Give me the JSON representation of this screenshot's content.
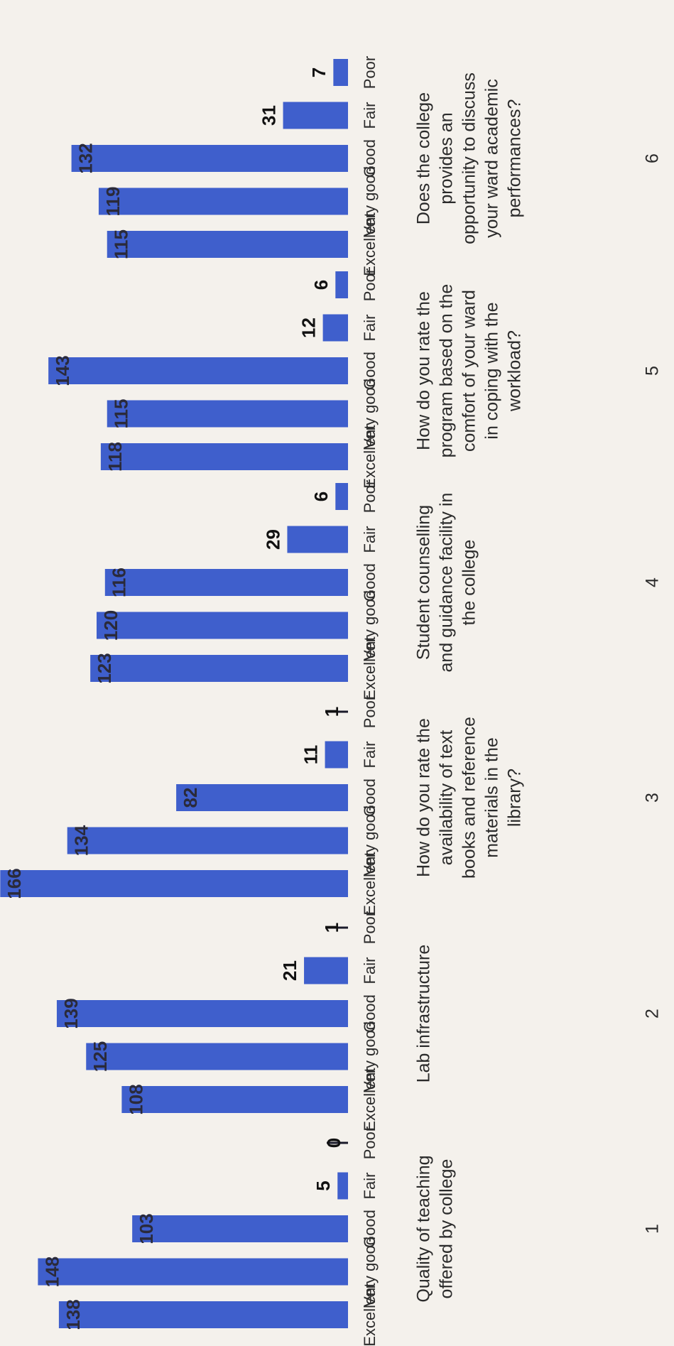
{
  "chart_data": {
    "type": "bar",
    "orientation": "rotated-90",
    "grid": false,
    "legend": "none",
    "bar_color": "#3f5fcc",
    "ylim": [
      0,
      170
    ],
    "groups": [
      {
        "number": "1",
        "question": [
          "Quality of teaching",
          "offered by college"
        ],
        "categories": [
          "Excellent",
          "Very good",
          "Good",
          "Fair",
          "Poor"
        ],
        "values": [
          138,
          148,
          103,
          5,
          0
        ]
      },
      {
        "number": "2",
        "question": [
          "Lab infrastructure"
        ],
        "categories": [
          "Excellent",
          "Very good",
          "Good",
          "Fair",
          "Poor"
        ],
        "values": [
          108,
          125,
          139,
          21,
          1
        ]
      },
      {
        "number": "3",
        "question": [
          "How do you rate the",
          "availability of text",
          "books and reference",
          "materials in the",
          "library?"
        ],
        "categories": [
          "Excellent",
          "Very good",
          "Good",
          "Fair",
          "Poor"
        ],
        "values": [
          166,
          134,
          82,
          11,
          1
        ]
      },
      {
        "number": "4",
        "question": [
          "Student counselling",
          "and guidance facility in",
          "the college"
        ],
        "categories": [
          "Excellent",
          "Very good",
          "Good",
          "Fair",
          "Poor"
        ],
        "values": [
          123,
          120,
          116,
          29,
          6
        ]
      },
      {
        "number": "5",
        "question": [
          "How do you rate the",
          "program based on the",
          "comfort of your ward",
          "in coping with the",
          "workload?"
        ],
        "categories": [
          "Excellent",
          "Very good",
          "Good",
          "Fair",
          "Poor"
        ],
        "values": [
          118,
          115,
          143,
          12,
          6
        ]
      },
      {
        "number": "6",
        "question": [
          "Does the college",
          "provides an",
          "opportunity to discuss",
          "your ward academic",
          "performances?"
        ],
        "categories": [
          "Excellent",
          "Very good",
          "Good",
          "Fair",
          "Poor"
        ],
        "values": [
          115,
          119,
          132,
          31,
          7
        ]
      }
    ]
  }
}
